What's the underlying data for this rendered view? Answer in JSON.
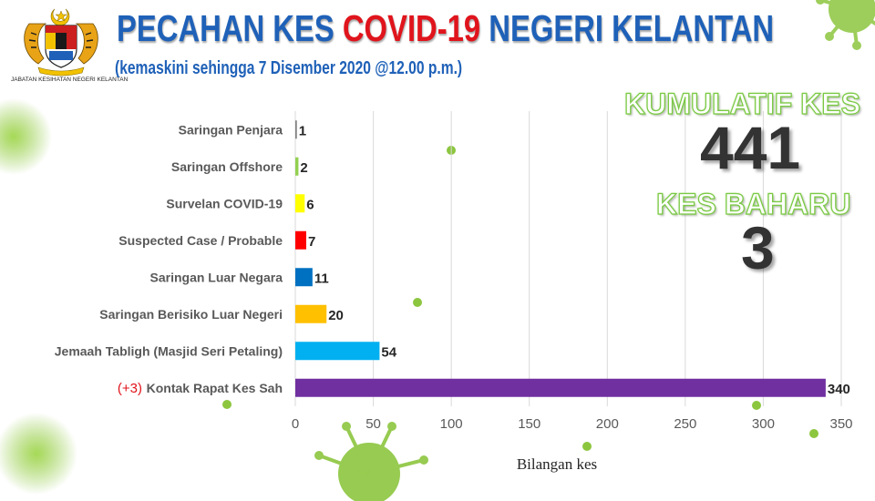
{
  "header": {
    "title_part1": "PECAHAN KES ",
    "title_part2": "COVID-19",
    "title_part3": " NEGERI KELANTAN",
    "subtitle": "(kemaskini sehingga 7 Disember 2020 @12.00 p.m.)",
    "logo_caption": "JABATAN KESIHATAN NEGERI KELANTAN"
  },
  "stats": {
    "cumulative_label": "KUMULATIF KES",
    "cumulative_value": "441",
    "new_label": "KES BAHARU",
    "new_value": "3"
  },
  "colors": {
    "title_blue": "#1f61b8",
    "title_red": "#e0141c",
    "stat_outline_green": "#7ac943",
    "virus_green": "#8cc63f"
  },
  "chart_data": {
    "type": "bar",
    "orientation": "horizontal",
    "categories": [
      "Saringan Penjara",
      "Saringan Offshore",
      "Survelan COVID-19",
      "Suspected Case / Probable",
      "Saringan Luar Negara",
      "Saringan Berisiko Luar Negeri",
      "Jemaah Tabligh (Masjid Seri Petaling)",
      "Kontak Rapat Kes Sah"
    ],
    "values": [
      1,
      2,
      6,
      7,
      11,
      20,
      54,
      340
    ],
    "bar_colors": [
      "#7f7f7f",
      "#92d050",
      "#ffff00",
      "#ff0000",
      "#0070c0",
      "#ffc000",
      "#00b0f0",
      "#7030a0"
    ],
    "annotations": [
      {
        "category": "Kontak Rapat Kes Sah",
        "text": "(+3)",
        "color": "#e0141c"
      }
    ],
    "xlabel": "Bilangan kes",
    "ylabel": "",
    "xlim": [
      0,
      350
    ],
    "xticks": [
      0,
      50,
      100,
      150,
      200,
      250,
      300,
      350
    ],
    "grid": true
  }
}
